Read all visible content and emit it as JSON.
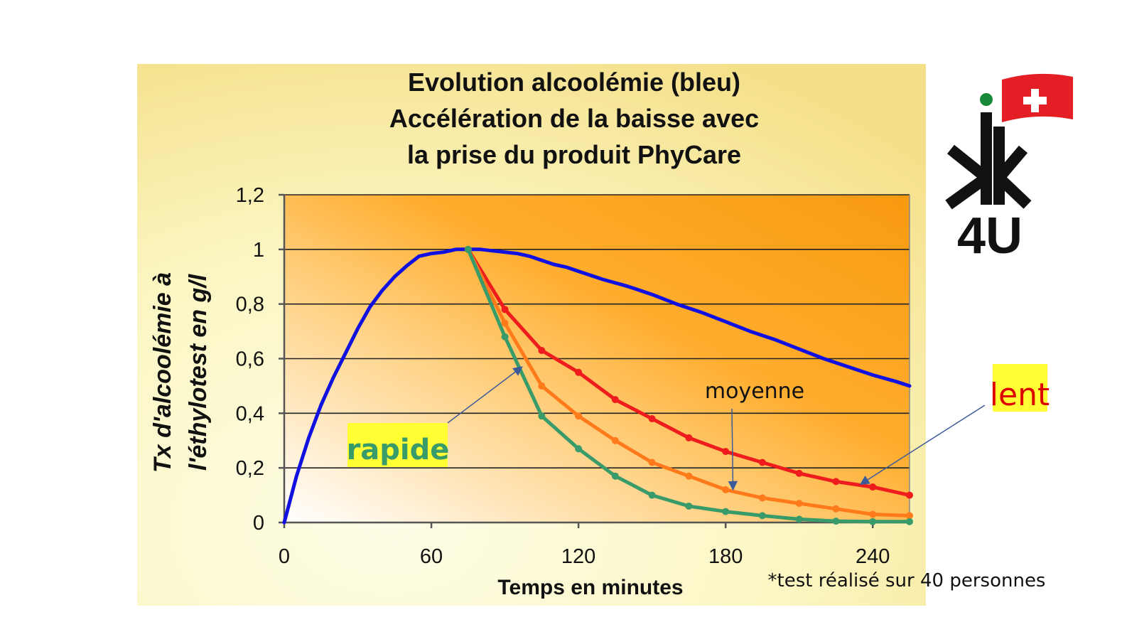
{
  "chart_data": {
    "type": "line",
    "title_lines": [
      "Evolution alcoolémie (bleu)",
      "Accélération de la baisse avec",
      "la prise du produit PhyCare"
    ],
    "xlabel": "Temps en minutes",
    "ylabel_lines": [
      "Tx d'alcoolémie à",
      "l'éthylotest en g/l"
    ],
    "xlim": [
      0,
      255
    ],
    "ylim": [
      0,
      1.2
    ],
    "x_ticks": [
      0,
      60,
      120,
      180,
      240
    ],
    "x_tick_labels": [
      "0",
      "60",
      "120",
      "180",
      "240"
    ],
    "y_ticks": [
      0,
      0.2,
      0.4,
      0.6,
      0.8,
      1,
      1.2
    ],
    "y_tick_labels": [
      "0",
      "0,2",
      "0,4",
      "0,6",
      "0,8",
      "1",
      "1,2"
    ],
    "grid": "horizontal",
    "series": [
      {
        "color": "#1010e0",
        "markers": false,
        "x": [
          0,
          5,
          10,
          15,
          20,
          25,
          30,
          35,
          40,
          45,
          50,
          55,
          60,
          65,
          70,
          75,
          80,
          85,
          90,
          95,
          100,
          105,
          110,
          115,
          120,
          130,
          140,
          150,
          160,
          170,
          180,
          190,
          200,
          210,
          220,
          230,
          240,
          250,
          255
        ],
        "y": [
          0,
          0.17,
          0.31,
          0.43,
          0.53,
          0.62,
          0.71,
          0.79,
          0.85,
          0.9,
          0.94,
          0.975,
          0.985,
          0.99,
          1,
          1,
          1,
          0.995,
          0.99,
          0.985,
          0.975,
          0.96,
          0.945,
          0.935,
          0.92,
          0.89,
          0.865,
          0.835,
          0.8,
          0.77,
          0.735,
          0.7,
          0.67,
          0.635,
          0.6,
          0.57,
          0.54,
          0.515,
          0.5
        ]
      },
      {
        "color": "#ee1c1c",
        "markers": true,
        "x": [
          75,
          90,
          105,
          120,
          135,
          150,
          165,
          180,
          195,
          210,
          225,
          240,
          255
        ],
        "y": [
          1,
          0.78,
          0.63,
          0.55,
          0.45,
          0.38,
          0.31,
          0.26,
          0.22,
          0.18,
          0.15,
          0.13,
          0.1
        ]
      },
      {
        "color": "#ff7a1a",
        "markers": true,
        "x": [
          75,
          90,
          105,
          120,
          135,
          150,
          165,
          180,
          195,
          210,
          225,
          240,
          255
        ],
        "y": [
          1,
          0.73,
          0.5,
          0.39,
          0.3,
          0.22,
          0.17,
          0.12,
          0.09,
          0.07,
          0.05,
          0.03,
          0.025
        ]
      },
      {
        "color": "#3a9b6a",
        "markers": true,
        "x": [
          75,
          90,
          105,
          120,
          135,
          150,
          165,
          180,
          195,
          210,
          225,
          240,
          255
        ],
        "y": [
          1,
          0.68,
          0.39,
          0.27,
          0.17,
          0.1,
          0.06,
          0.04,
          0.025,
          0.012,
          0.005,
          0.003,
          0.003
        ]
      }
    ],
    "annotations": [
      {
        "text": "rapide",
        "color": "#3a9b6a",
        "highlight": "#ffff33",
        "bold": true,
        "arrow_to": [
          97,
          0.57
        ]
      },
      {
        "text": "moyenne",
        "color": "#111111",
        "highlight": "",
        "bold": false,
        "arrow_to": [
          183,
          0.12
        ]
      },
      {
        "text": "lent",
        "color": "#dd0000",
        "highlight": "#ffff33",
        "bold": false,
        "arrow_to": [
          235,
          0.14
        ]
      }
    ],
    "footnote": "*test réalisé sur 40 personnes"
  },
  "logo": {
    "text": "4U",
    "flag_colors": {
      "red": "#e31e24",
      "white": "#ffffff"
    },
    "dot_color": "#1a8a3a"
  }
}
